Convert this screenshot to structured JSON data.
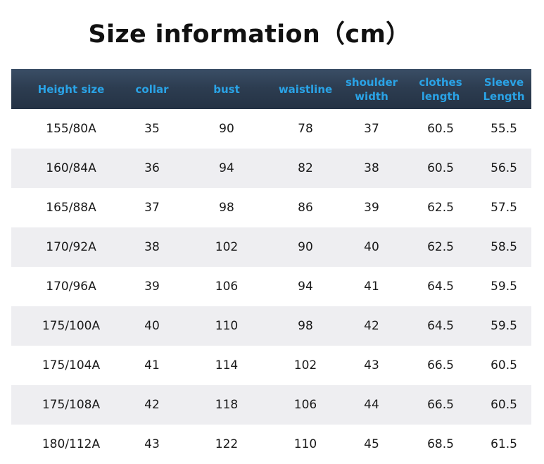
{
  "title": "Size information（cm）",
  "columns": [
    "Height size",
    "collar",
    "bust",
    "waistline",
    "shoulder\nwidth",
    "clothes\nlength",
    "Sleeve\nLength"
  ],
  "rows": [
    [
      "155/80A",
      "35",
      "90",
      "78",
      "37",
      "60.5",
      "55.5"
    ],
    [
      "160/84A",
      "36",
      "94",
      "82",
      "38",
      "60.5",
      "56.5"
    ],
    [
      "165/88A",
      "37",
      "98",
      "86",
      "39",
      "62.5",
      "57.5"
    ],
    [
      "170/92A",
      "38",
      "102",
      "90",
      "40",
      "62.5",
      "58.5"
    ],
    [
      "170/96A",
      "39",
      "106",
      "94",
      "41",
      "64.5",
      "59.5"
    ],
    [
      "175/100A",
      "40",
      "110",
      "98",
      "42",
      "64.5",
      "59.5"
    ],
    [
      "175/104A",
      "41",
      "114",
      "102",
      "43",
      "66.5",
      "60.5"
    ],
    [
      "175/108A",
      "42",
      "118",
      "106",
      "44",
      "66.5",
      "60.5"
    ],
    [
      "180/112A",
      "43",
      "122",
      "110",
      "45",
      "68.5",
      "61.5"
    ]
  ],
  "colors": {
    "header_bg": "#2d3d51",
    "header_text": "#2aa3e6",
    "alt_row_bg": "#eeeef1",
    "body_text": "#1a1a1a"
  }
}
